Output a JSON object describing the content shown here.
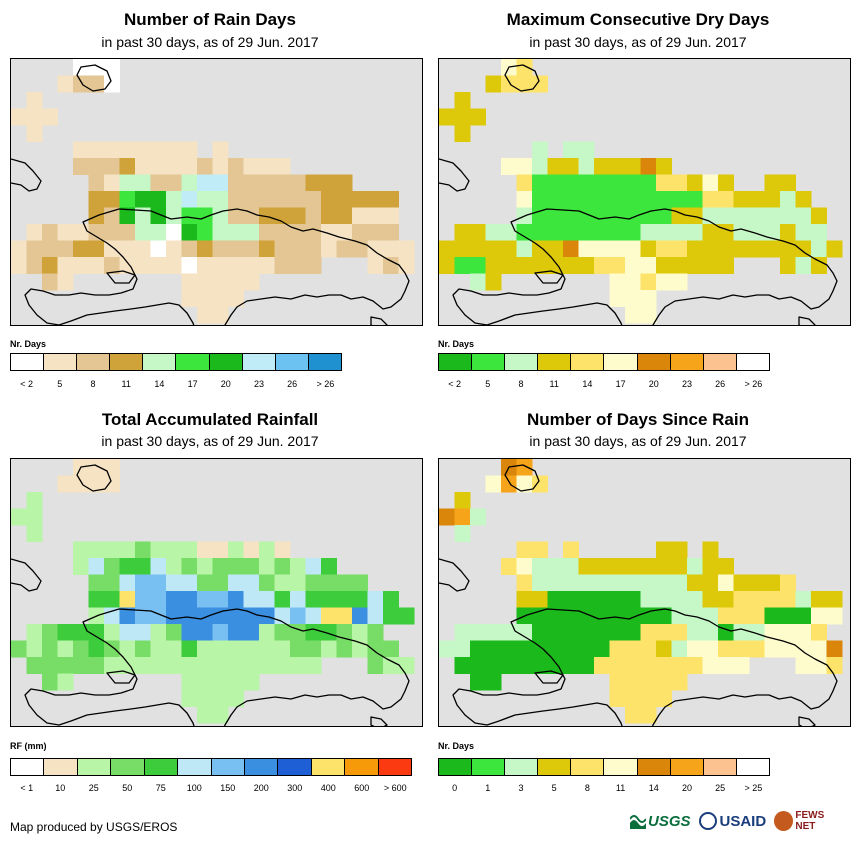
{
  "panels": [
    {
      "id": "rain_days",
      "title": "Number of Rain Days",
      "subtitle": "in past 30 days, as of 29 Jun. 2017",
      "legend_label": "Nr. Days",
      "legend_colors": [
        "#ffffff",
        "#f5e3c4",
        "#e3c693",
        "#cfa33a",
        "#c6f7c6",
        "#3ce63c",
        "#1bb91b",
        "#c0ecf7",
        "#6cc2f0",
        "#1f91d1"
      ],
      "legend_ticks": [
        "< 2",
        "5",
        "8",
        "11",
        "14",
        "17",
        "20",
        "23",
        "26",
        "> 26"
      ],
      "grid": [
        "....aaa....................",
        "...bcca....................",
        ".b.........................",
        "bbb........................",
        ".b.........................",
        "....bbbbbbbb.b.............",
        "....cccdbbbbcbcbbb.........",
        ".....cbeeccehhcccccddd.....",
        ".....ddfggeheeccccccddddd..",
        ".....dcgegeffeccdddcddbbb..",
        ".bcbbccceeagfeeeccccbbccc..",
        "bcccddbbbabcdcccdcccbccbbb.",
        "bcdbbbcbbbbabbbbbccc...bcb.",
        "..cb.......bbbbb...........",
        "...........bbbb............",
        "............bb.............",
        "..........................."
      ]
    },
    {
      "id": "dry_days",
      "title": "Maximum Consecutive Dry Days",
      "subtitle": "in past 30 days, as of 29 Jun. 2017",
      "legend_label": "Nr. Days",
      "legend_colors": [
        "#1bb91b",
        "#3ce63c",
        "#c6f7c6",
        "#ddc80a",
        "#fde36a",
        "#fefccc",
        "#d9860a",
        "#f6a41a",
        "#fcc28f",
        "#ffffff"
      ],
      "legend_ticks": [
        "< 2",
        "5",
        "8",
        "11",
        "14",
        "17",
        "20",
        "23",
        "26",
        "> 26"
      ],
      "grid": [
        "....fe.....................",
        "...deee....................",
        ".d.........................",
        "ddd........................",
        ".d.........................",
        "......c.cc.................",
        "....ffcddcdddgd............",
        ".....ebbbbbbbbeedfd..dd....",
        ".....fbbbbbbbbbbbeedddcd...",
        ".....cbbbbbbbbbddcccccccd..",
        ".ddccbbbbbbbbccccddcccdcc..",
        "dddddcddgffffdeeddddddddcd.",
        "dbbdddddddeeffddddd...dcd..",
        "..cd.......ffeff...........",
        "...........fff.............",
        "............ff.............",
        "..........................."
      ]
    },
    {
      "id": "total_rainfall",
      "title": "Total Accumulated Rainfall",
      "subtitle": "in past 30 days, as of 29 Jun. 2017",
      "legend_label": "RF (mm)",
      "legend_colors": [
        "#ffffff",
        "#f5e3c4",
        "#b8f5a6",
        "#77dd66",
        "#3ccc3c",
        "#bfe8f7",
        "#78bff2",
        "#3a8fe0",
        "#1f5fd6",
        "#fde36a",
        "#f79a0a",
        "#fb3a12"
      ],
      "legend_ticks": [
        "< 1",
        "10",
        "25",
        "50",
        "75",
        "100",
        "150",
        "200",
        "300",
        "400",
        "600",
        "> 600"
      ],
      "grid": [
        "....bbb....................",
        "...bbbb....................",
        ".c.........................",
        "cc.........................",
        ".c.........................",
        "....ccccdcccbbcbcb.........",
        "....cfdeefcdcdddcdcfe......",
        ".....ddfggffddffdccdddd....",
        ".....eejgghhgghffefeeeefe..",
        ".....cfhgghhhhhhhfgfjjhfee.",
        ".cdeeecffcdhhghhcddeedcd...",
        "dcdcdedcdcceccccccddcdcdd..",
        ".dddddcccccccccccccc...dcc.",
        "..dc.......ccccc...........",
        "...........cccc............",
        "............cc.............",
        "..........................."
      ]
    },
    {
      "id": "days_since_rain",
      "title": "Number of Days Since Rain",
      "subtitle": "in past 30 days, as of 29 Jun. 2017",
      "legend_label": "Nr. Days",
      "legend_colors": [
        "#1bb91b",
        "#3ce63c",
        "#c6f7c6",
        "#ddc80a",
        "#fde36a",
        "#fefccc",
        "#d9860a",
        "#f6a41a",
        "#fcc28f",
        "#ffffff"
      ],
      "legend_ticks": [
        "0",
        "1",
        "3",
        "5",
        "8",
        "11",
        "14",
        "20",
        "25",
        "> 25"
      ],
      "grid": [
        "....gh.....................",
        "...fhfe....................",
        ".d.........................",
        "ghc........................",
        ".c.........................",
        ".....ee.e.....dd.d.........",
        "....efcccdddddddcdd........",
        ".....eccccccccccddfddde....",
        ".....ddaaaaaaccccddeeeecdd.",
        ".....aaaaaaaaaaccceeeaaaff.",
        ".cccccaaaaaaaeeeccaccfffe..",
        "ccaaaaaaaaaeeedcffeeeffffg.",
        ".aaaaaaaaaeeeeeeefff...ffe.",
        "..aa.......eeeee...........",
        "...........eeee............",
        "............ee.............",
        "..........................."
      ]
    }
  ],
  "footer": "Map produced by USGS/EROS",
  "logos": {
    "usgs": "USGS",
    "usaid": "USAID",
    "fews": "FEWS NET",
    "colors": {
      "usgs": "#0b6e3d",
      "usaid": "#1a3d7c",
      "fews": "#8a1c1c"
    }
  }
}
